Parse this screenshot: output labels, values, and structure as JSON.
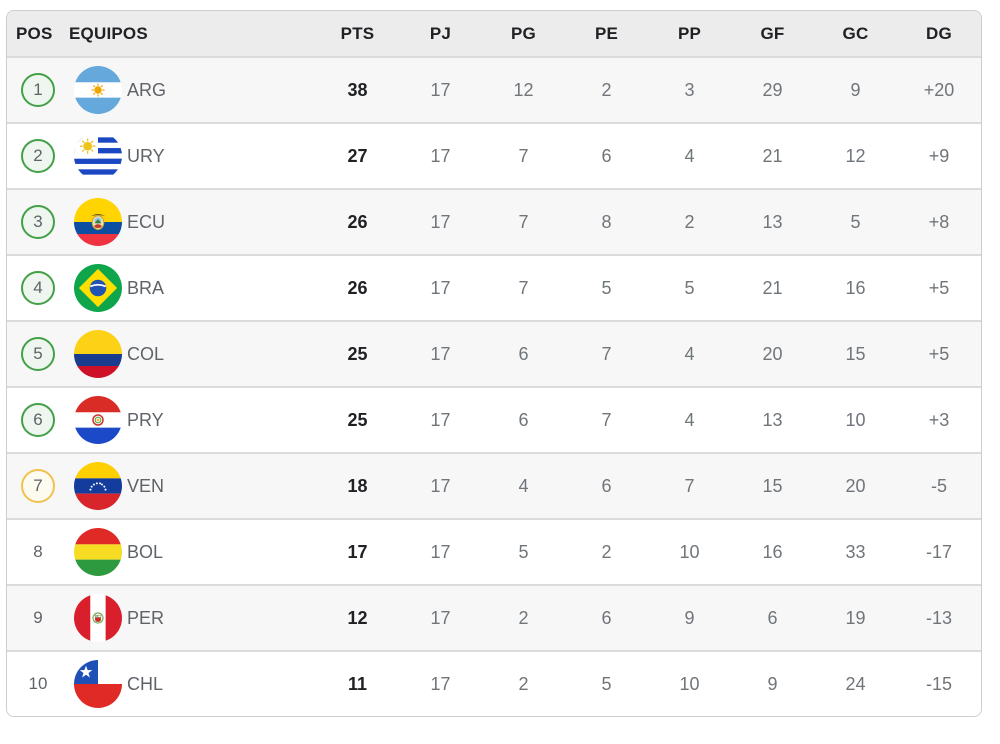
{
  "standings": {
    "columns": [
      {
        "id": "pos",
        "label": "POS"
      },
      {
        "id": "equipos",
        "label": "EQUIPOS"
      },
      {
        "id": "pts",
        "label": "PTS"
      },
      {
        "id": "pj",
        "label": "PJ"
      },
      {
        "id": "pg",
        "label": "PG"
      },
      {
        "id": "pe",
        "label": "PE"
      },
      {
        "id": "pp",
        "label": "PP"
      },
      {
        "id": "gf",
        "label": "GF"
      },
      {
        "id": "gc",
        "label": "GC"
      },
      {
        "id": "dg",
        "label": "DG"
      }
    ],
    "rows": [
      {
        "pos": "1",
        "zone": "qualification",
        "flag": "argentina-flag",
        "team": "ARG",
        "pts": "38",
        "pj": "17",
        "pg": "12",
        "pe": "2",
        "pp": "3",
        "gf": "29",
        "gc": "9",
        "dg": "+20"
      },
      {
        "pos": "2",
        "zone": "qualification",
        "flag": "uruguay-flag",
        "team": "URY",
        "pts": "27",
        "pj": "17",
        "pg": "7",
        "pe": "6",
        "pp": "4",
        "gf": "21",
        "gc": "12",
        "dg": "+9"
      },
      {
        "pos": "3",
        "zone": "qualification",
        "flag": "ecuador-flag",
        "team": "ECU",
        "pts": "26",
        "pj": "17",
        "pg": "7",
        "pe": "8",
        "pp": "2",
        "gf": "13",
        "gc": "5",
        "dg": "+8"
      },
      {
        "pos": "4",
        "zone": "qualification",
        "flag": "brazil-flag",
        "team": "BRA",
        "pts": "26",
        "pj": "17",
        "pg": "7",
        "pe": "5",
        "pp": "5",
        "gf": "21",
        "gc": "16",
        "dg": "+5"
      },
      {
        "pos": "5",
        "zone": "qualification",
        "flag": "colombia-flag",
        "team": "COL",
        "pts": "25",
        "pj": "17",
        "pg": "6",
        "pe": "7",
        "pp": "4",
        "gf": "20",
        "gc": "15",
        "dg": "+5"
      },
      {
        "pos": "6",
        "zone": "qualification",
        "flag": "paraguay-flag",
        "team": "PRY",
        "pts": "25",
        "pj": "17",
        "pg": "6",
        "pe": "7",
        "pp": "4",
        "gf": "13",
        "gc": "10",
        "dg": "+3"
      },
      {
        "pos": "7",
        "zone": "playoff",
        "flag": "venezuela-flag",
        "team": "VEN",
        "pts": "18",
        "pj": "17",
        "pg": "4",
        "pe": "6",
        "pp": "7",
        "gf": "15",
        "gc": "20",
        "dg": "-5"
      },
      {
        "pos": "8",
        "zone": "none",
        "flag": "bolivia-flag",
        "team": "BOL",
        "pts": "17",
        "pj": "17",
        "pg": "5",
        "pe": "2",
        "pp": "10",
        "gf": "16",
        "gc": "33",
        "dg": "-17"
      },
      {
        "pos": "9",
        "zone": "none",
        "flag": "peru-flag",
        "team": "PER",
        "pts": "12",
        "pj": "17",
        "pg": "2",
        "pe": "6",
        "pp": "9",
        "gf": "6",
        "gc": "19",
        "dg": "-13"
      },
      {
        "pos": "10",
        "zone": "none",
        "flag": "chile-flag",
        "team": "CHL",
        "pts": "11",
        "pj": "17",
        "pg": "2",
        "pe": "5",
        "pp": "10",
        "gf": "9",
        "gc": "24",
        "dg": "-15"
      }
    ],
    "zone_colors": {
      "qualification_border": "#43A047",
      "qualification_fill": "#EEF6EF",
      "playoff_border": "#F2C14E",
      "playoff_fill": "#FDFAEF"
    }
  }
}
